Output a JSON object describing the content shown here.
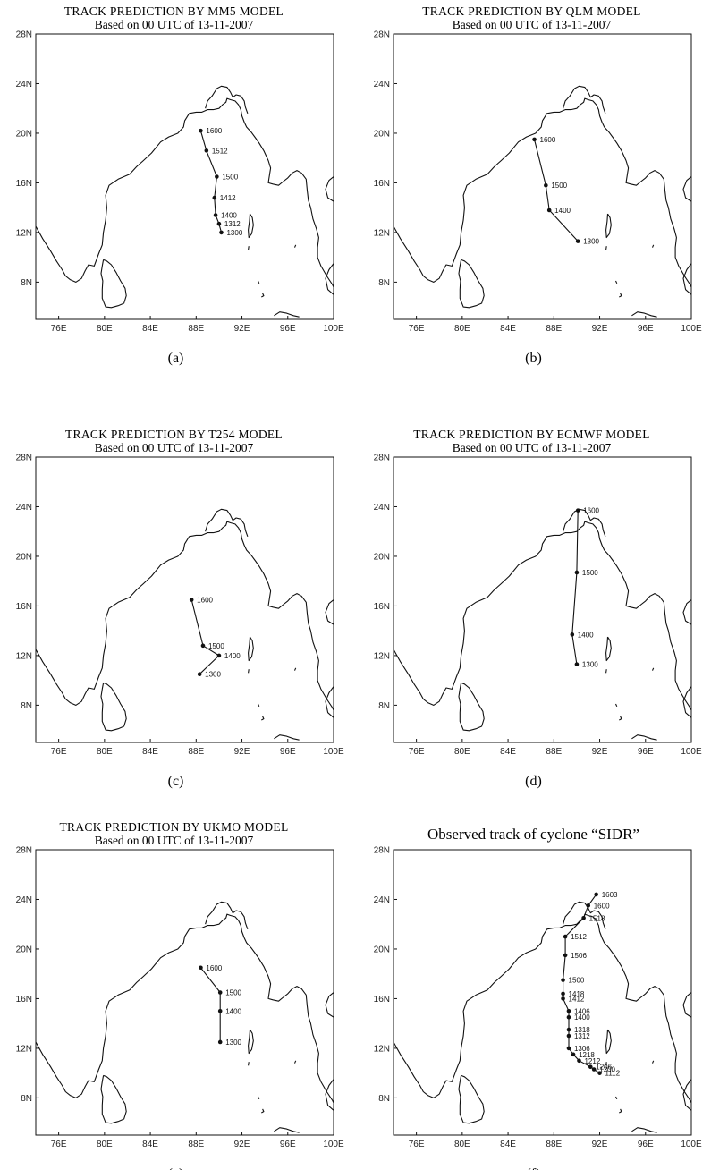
{
  "panels": [
    {
      "id": "a",
      "title_lines": [
        "TRACK PREDICTION BY MM5 MODEL",
        "Based on 00 UTC  of 13-11-2007"
      ],
      "caption": "(a)",
      "track": [
        {
          "lon": 90.2,
          "lat": 12.0,
          "label": "1300"
        },
        {
          "lon": 90.0,
          "lat": 12.7,
          "label": "1312"
        },
        {
          "lon": 89.7,
          "lat": 13.4,
          "label": "1400"
        },
        {
          "lon": 89.6,
          "lat": 14.8,
          "label": "1412"
        },
        {
          "lon": 89.8,
          "lat": 16.5,
          "label": "1500"
        },
        {
          "lon": 88.9,
          "lat": 18.6,
          "label": "1512"
        },
        {
          "lon": 88.4,
          "lat": 20.2,
          "label": "1600"
        }
      ]
    },
    {
      "id": "b",
      "title_lines": [
        "TRACK PREDICTION BY QLM MODEL",
        "Based on 00 UTC  of 13-11-2007"
      ],
      "caption": "(b)",
      "track": [
        {
          "lon": 90.1,
          "lat": 11.3,
          "label": "1300"
        },
        {
          "lon": 87.6,
          "lat": 13.8,
          "label": "1400"
        },
        {
          "lon": 87.3,
          "lat": 15.8,
          "label": "1500"
        },
        {
          "lon": 86.3,
          "lat": 19.5,
          "label": "1600"
        }
      ]
    },
    {
      "id": "c",
      "title_lines": [
        "TRACK PREDICTION BY T254 MODEL",
        "Based on 00 UTC  of 13-11-2007"
      ],
      "caption": "(c)",
      "track": [
        {
          "lon": 88.3,
          "lat": 10.5,
          "label": "1300"
        },
        {
          "lon": 90.0,
          "lat": 12.0,
          "label": "1400"
        },
        {
          "lon": 88.6,
          "lat": 12.8,
          "label": "1500"
        },
        {
          "lon": 87.6,
          "lat": 16.5,
          "label": "1600"
        }
      ]
    },
    {
      "id": "d",
      "title_lines": [
        "TRACK PREDICTION BY ECMWF  MODEL",
        "Based on 00 UTC  of 13-11-2007"
      ],
      "caption": "(d)",
      "track": [
        {
          "lon": 90.0,
          "lat": 11.3,
          "label": "1300"
        },
        {
          "lon": 89.6,
          "lat": 13.7,
          "label": "1400"
        },
        {
          "lon": 90.0,
          "lat": 18.7,
          "label": "1500"
        },
        {
          "lon": 90.1,
          "lat": 23.7,
          "label": "1600"
        }
      ]
    },
    {
      "id": "e",
      "title_lines": [
        "TRACK PREDICTION BY UKMO MODEL",
        "Based on 00 UTC  of 13-11-2007"
      ],
      "caption": "(e)",
      "track": [
        {
          "lon": 90.1,
          "lat": 12.5,
          "label": "1300"
        },
        {
          "lon": 90.1,
          "lat": 15.0,
          "label": "1400"
        },
        {
          "lon": 90.1,
          "lat": 16.5,
          "label": "1500"
        },
        {
          "lon": 88.4,
          "lat": 18.5,
          "label": "1600"
        }
      ]
    },
    {
      "id": "f",
      "title_lines": [
        "Observed track of cyclone “SIDR”"
      ],
      "caption": "(f)",
      "track": [
        {
          "lon": 92.0,
          "lat": 10.0,
          "label": "1112"
        },
        {
          "lon": 91.5,
          "lat": 10.3,
          "label": "1200"
        },
        {
          "lon": 91.2,
          "lat": 10.5,
          "label": "1206"
        },
        {
          "lon": 90.2,
          "lat": 11.0,
          "label": "1212"
        },
        {
          "lon": 89.7,
          "lat": 11.5,
          "label": "1218"
        },
        {
          "lon": 89.3,
          "lat": 12.0,
          "label": "1306"
        },
        {
          "lon": 89.3,
          "lat": 13.0,
          "label": "1312"
        },
        {
          "lon": 89.3,
          "lat": 13.5,
          "label": "1318"
        },
        {
          "lon": 89.3,
          "lat": 14.5,
          "label": "1400"
        },
        {
          "lon": 89.3,
          "lat": 15.0,
          "label": "1406"
        },
        {
          "lon": 88.8,
          "lat": 16.0,
          "label": "1412"
        },
        {
          "lon": 88.8,
          "lat": 16.4,
          "label": "1418"
        },
        {
          "lon": 88.8,
          "lat": 17.5,
          "label": "1500"
        },
        {
          "lon": 89.0,
          "lat": 19.5,
          "label": "1506"
        },
        {
          "lon": 89.0,
          "lat": 21.0,
          "label": "1512"
        },
        {
          "lon": 90.6,
          "lat": 22.5,
          "label": "1518"
        },
        {
          "lon": 91.0,
          "lat": 23.5,
          "label": "1600"
        },
        {
          "lon": 91.7,
          "lat": 24.4,
          "label": "1603"
        }
      ]
    }
  ],
  "axes": {
    "lon_ticks": [
      "76E",
      "80E",
      "84E",
      "88E",
      "92E",
      "96E",
      "100E"
    ],
    "lat_ticks": [
      "8N",
      "12N",
      "16N",
      "20N",
      "24N",
      "28N"
    ],
    "lon_values": [
      76,
      80,
      84,
      88,
      92,
      96,
      100
    ],
    "lat_values": [
      8,
      12,
      16,
      20,
      24,
      28
    ],
    "lon_range": [
      74,
      100
    ],
    "lat_range": [
      5,
      28
    ]
  }
}
